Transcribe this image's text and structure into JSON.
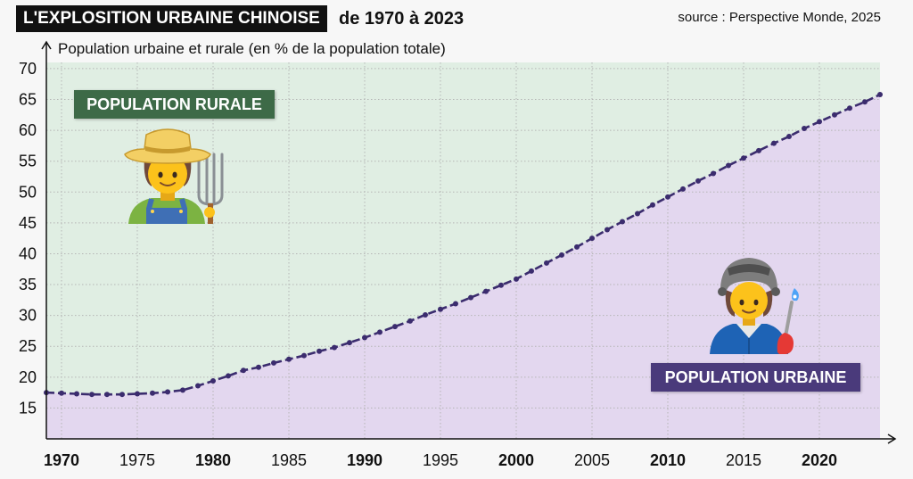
{
  "chart_data": {
    "type": "area",
    "title": "L'EXPLOSITION URBAINE CHINOISE",
    "subtitle": "de 1970 à 2023",
    "source": "source : Perspective Monde, 2025",
    "ylabel": "Population urbaine et rurale (en % de la population totale)",
    "xlim": [
      1969,
      2024
    ],
    "ylim": [
      10,
      71
    ],
    "x_ticks": [
      1970,
      1975,
      1980,
      1985,
      1990,
      1995,
      2000,
      2005,
      2010,
      2015,
      2020
    ],
    "y_ticks": [
      15,
      20,
      25,
      30,
      35,
      40,
      45,
      50,
      55,
      60,
      65,
      70
    ],
    "grid": true,
    "x": [
      1969,
      1970,
      1971,
      1972,
      1973,
      1974,
      1975,
      1976,
      1977,
      1978,
      1979,
      1980,
      1981,
      1982,
      1983,
      1984,
      1985,
      1986,
      1987,
      1988,
      1989,
      1990,
      1991,
      1992,
      1993,
      1994,
      1995,
      1996,
      1997,
      1998,
      1999,
      2000,
      2001,
      2002,
      2003,
      2004,
      2005,
      2006,
      2007,
      2008,
      2009,
      2010,
      2011,
      2012,
      2013,
      2014,
      2015,
      2016,
      2017,
      2018,
      2019,
      2020,
      2021,
      2022,
      2023,
      2024
    ],
    "series": [
      {
        "name": "POPULATION URBAINE",
        "values": [
          17.5,
          17.4,
          17.3,
          17.2,
          17.2,
          17.2,
          17.3,
          17.4,
          17.6,
          17.9,
          18.6,
          19.4,
          20.2,
          21.1,
          21.6,
          22.3,
          22.9,
          23.5,
          24.2,
          24.8,
          25.6,
          26.4,
          27.3,
          28.2,
          29.1,
          30.1,
          31.0,
          31.9,
          32.9,
          33.9,
          34.9,
          35.9,
          37.2,
          38.5,
          39.8,
          41.1,
          42.5,
          43.9,
          45.2,
          46.5,
          47.9,
          49.2,
          50.5,
          51.8,
          53.0,
          54.3,
          55.5,
          56.7,
          57.9,
          59.0,
          60.3,
          61.4,
          62.5,
          63.6,
          64.6,
          65.8
        ],
        "line_color": "#3b2c6e",
        "fill_color": "#e3d7ef",
        "label_color": "#4a3a7b"
      }
    ],
    "fill_above": {
      "name": "POPULATION RURALE",
      "fill_color": "#e0eee3",
      "label_color": "#3d6a47"
    },
    "title_box_color": "#111111",
    "icons": {
      "rural": "farmer-icon",
      "urban": "factory-worker-icon"
    }
  }
}
